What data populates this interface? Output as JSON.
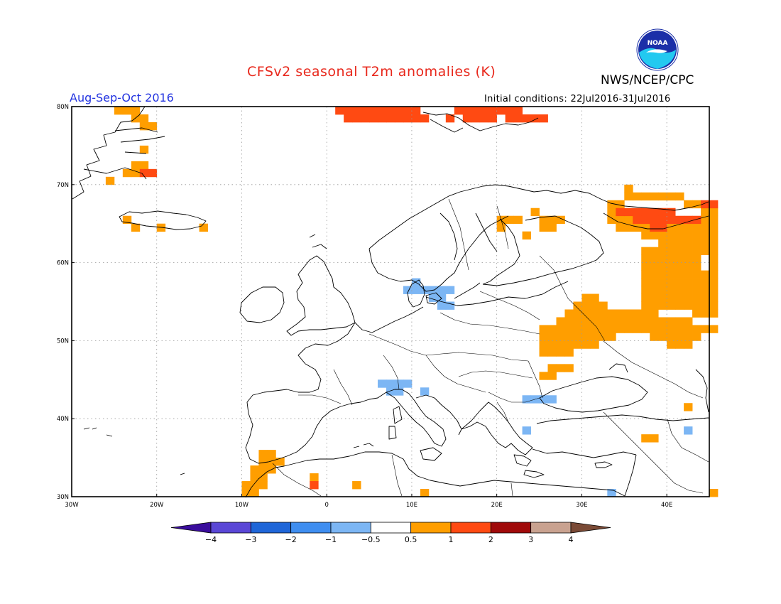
{
  "title": "CFSv2 seasonal T2m anomalies (K)",
  "agency": "NWS/NCEP/CPC",
  "logo_text": "NOAA",
  "season": "Aug-Sep-Oct 2016",
  "initial_conditions": "Initial conditions: 22Jul2016-31Jul2016",
  "colors": {
    "title": "#e8281c",
    "season": "#2233e0",
    "land_outline": "#000000",
    "frame": "#000000",
    "grid": "#999999"
  },
  "map": {
    "lon_range": [
      -30,
      45
    ],
    "lat_range": [
      30,
      80
    ],
    "lat_ticks": [
      "30N",
      "40N",
      "50N",
      "60N",
      "70N",
      "80N"
    ],
    "lon_ticks": [
      "30W",
      "20W",
      "10W",
      "0",
      "10E",
      "20E",
      "30E",
      "40E"
    ],
    "gridlines": "dotted"
  },
  "colorbar": {
    "ticks": [
      "-4",
      "-3",
      "-2",
      "-1",
      "-0.5",
      "0.5",
      "1",
      "2",
      "3",
      "4"
    ],
    "bins": [
      {
        "range": "<-4",
        "color": "#3a0d9c"
      },
      {
        "range": "-4 to -3",
        "color": "#5a47d6"
      },
      {
        "range": "-3 to -2",
        "color": "#1f66d8"
      },
      {
        "range": "-2 to -1",
        "color": "#3f8ef0"
      },
      {
        "range": "-1 to -0.5",
        "color": "#7cb6f4"
      },
      {
        "range": "-0.5 to 0.5",
        "color": "#ffffff"
      },
      {
        "range": "0.5 to 1",
        "color": "#ff9e00"
      },
      {
        "range": "1 to 2",
        "color": "#ff4a12"
      },
      {
        "range": "2 to 3",
        "color": "#a00a0a"
      },
      {
        "range": "3 to 4",
        "color": "#c9a290"
      },
      {
        "range": ">4",
        "color": "#7a4a36"
      }
    ]
  },
  "anomalies": {
    "cell_deg": 1,
    "orange": [
      [
        -25,
        79
      ],
      [
        -24,
        79
      ],
      [
        -23,
        79
      ],
      [
        -23,
        78
      ],
      [
        -22,
        78
      ],
      [
        -22,
        77
      ],
      [
        -21,
        77
      ],
      [
        -23,
        72
      ],
      [
        -22,
        72
      ],
      [
        -24,
        71
      ],
      [
        -23,
        71
      ],
      [
        -26,
        70
      ],
      [
        -22,
        74
      ],
      [
        -24,
        65
      ],
      [
        -23,
        64
      ],
      [
        -20,
        64
      ],
      [
        -15,
        64
      ],
      [
        35,
        69
      ],
      [
        35,
        68
      ],
      [
        36,
        68
      ],
      [
        37,
        68
      ],
      [
        38,
        68
      ],
      [
        39,
        68
      ],
      [
        40,
        68
      ],
      [
        41,
        68
      ],
      [
        33,
        67
      ],
      [
        34,
        67
      ],
      [
        42,
        67
      ],
      [
        43,
        67
      ],
      [
        33,
        66
      ],
      [
        34,
        66
      ],
      [
        44,
        66
      ],
      [
        45,
        66
      ],
      [
        33,
        65
      ],
      [
        34,
        65
      ],
      [
        35,
        65
      ],
      [
        44,
        65
      ],
      [
        45,
        65
      ],
      [
        34,
        64
      ],
      [
        35,
        64
      ],
      [
        36,
        64
      ],
      [
        37,
        64
      ],
      [
        38,
        64
      ],
      [
        39,
        64
      ],
      [
        40,
        64
      ],
      [
        41,
        64
      ],
      [
        42,
        64
      ],
      [
        43,
        64
      ],
      [
        44,
        64
      ],
      [
        45,
        64
      ],
      [
        37,
        63
      ],
      [
        38,
        63
      ],
      [
        39,
        63
      ],
      [
        40,
        63
      ],
      [
        41,
        63
      ],
      [
        42,
        63
      ],
      [
        43,
        63
      ],
      [
        44,
        63
      ],
      [
        45,
        63
      ],
      [
        39,
        62
      ],
      [
        40,
        62
      ],
      [
        41,
        62
      ],
      [
        42,
        62
      ],
      [
        43,
        62
      ],
      [
        44,
        62
      ],
      [
        45,
        62
      ],
      [
        37,
        61
      ],
      [
        38,
        61
      ],
      [
        39,
        61
      ],
      [
        40,
        61
      ],
      [
        41,
        61
      ],
      [
        42,
        61
      ],
      [
        43,
        61
      ],
      [
        44,
        61
      ],
      [
        45,
        61
      ],
      [
        37,
        60
      ],
      [
        38,
        60
      ],
      [
        39,
        60
      ],
      [
        40,
        60
      ],
      [
        41,
        60
      ],
      [
        42,
        60
      ],
      [
        43,
        60
      ],
      [
        45,
        60
      ],
      [
        37,
        59
      ],
      [
        38,
        59
      ],
      [
        39,
        59
      ],
      [
        40,
        59
      ],
      [
        41,
        59
      ],
      [
        42,
        59
      ],
      [
        43,
        59
      ],
      [
        45,
        59
      ],
      [
        37,
        58
      ],
      [
        38,
        58
      ],
      [
        39,
        58
      ],
      [
        40,
        58
      ],
      [
        41,
        58
      ],
      [
        42,
        58
      ],
      [
        43,
        58
      ],
      [
        44,
        58
      ],
      [
        45,
        58
      ],
      [
        37,
        57
      ],
      [
        38,
        57
      ],
      [
        39,
        57
      ],
      [
        40,
        57
      ],
      [
        41,
        57
      ],
      [
        42,
        57
      ],
      [
        43,
        57
      ],
      [
        44,
        57
      ],
      [
        45,
        57
      ],
      [
        37,
        56
      ],
      [
        38,
        56
      ],
      [
        39,
        56
      ],
      [
        40,
        56
      ],
      [
        41,
        56
      ],
      [
        42,
        56
      ],
      [
        43,
        56
      ],
      [
        44,
        56
      ],
      [
        45,
        56
      ],
      [
        30,
        55
      ],
      [
        31,
        55
      ],
      [
        37,
        55
      ],
      [
        38,
        55
      ],
      [
        39,
        55
      ],
      [
        40,
        55
      ],
      [
        41,
        55
      ],
      [
        42,
        55
      ],
      [
        43,
        55
      ],
      [
        44,
        55
      ],
      [
        45,
        55
      ],
      [
        29,
        54
      ],
      [
        30,
        54
      ],
      [
        31,
        54
      ],
      [
        32,
        54
      ],
      [
        37,
        54
      ],
      [
        38,
        54
      ],
      [
        39,
        54
      ],
      [
        40,
        54
      ],
      [
        41,
        54
      ],
      [
        42,
        54
      ],
      [
        43,
        54
      ],
      [
        44,
        54
      ],
      [
        45,
        54
      ],
      [
        28,
        53
      ],
      [
        29,
        53
      ],
      [
        30,
        53
      ],
      [
        31,
        53
      ],
      [
        32,
        53
      ],
      [
        33,
        53
      ],
      [
        34,
        53
      ],
      [
        35,
        53
      ],
      [
        36,
        53
      ],
      [
        37,
        53
      ],
      [
        38,
        53
      ],
      [
        43,
        53
      ],
      [
        44,
        53
      ],
      [
        45,
        53
      ],
      [
        27,
        52
      ],
      [
        28,
        52
      ],
      [
        29,
        52
      ],
      [
        30,
        52
      ],
      [
        31,
        52
      ],
      [
        32,
        52
      ],
      [
        33,
        52
      ],
      [
        34,
        52
      ],
      [
        35,
        52
      ],
      [
        36,
        52
      ],
      [
        37,
        52
      ],
      [
        38,
        52
      ],
      [
        39,
        52
      ],
      [
        40,
        52
      ],
      [
        41,
        52
      ],
      [
        42,
        52
      ],
      [
        25,
        51
      ],
      [
        26,
        51
      ],
      [
        27,
        51
      ],
      [
        28,
        51
      ],
      [
        29,
        51
      ],
      [
        30,
        51
      ],
      [
        31,
        51
      ],
      [
        32,
        51
      ],
      [
        33,
        51
      ],
      [
        34,
        51
      ],
      [
        35,
        51
      ],
      [
        36,
        51
      ],
      [
        37,
        51
      ],
      [
        38,
        51
      ],
      [
        39,
        51
      ],
      [
        40,
        51
      ],
      [
        41,
        51
      ],
      [
        42,
        51
      ],
      [
        43,
        51
      ],
      [
        44,
        51
      ],
      [
        45,
        51
      ],
      [
        25,
        50
      ],
      [
        26,
        50
      ],
      [
        27,
        50
      ],
      [
        28,
        50
      ],
      [
        29,
        50
      ],
      [
        30,
        50
      ],
      [
        31,
        50
      ],
      [
        32,
        50
      ],
      [
        33,
        50
      ],
      [
        38,
        50
      ],
      [
        39,
        50
      ],
      [
        40,
        50
      ],
      [
        41,
        50
      ],
      [
        42,
        50
      ],
      [
        43,
        50
      ],
      [
        25,
        49
      ],
      [
        26,
        49
      ],
      [
        27,
        49
      ],
      [
        28,
        49
      ],
      [
        29,
        49
      ],
      [
        30,
        49
      ],
      [
        31,
        49
      ],
      [
        40,
        49
      ],
      [
        41,
        49
      ],
      [
        42,
        49
      ],
      [
        25,
        48
      ],
      [
        26,
        48
      ],
      [
        27,
        48
      ],
      [
        28,
        48
      ],
      [
        26,
        46
      ],
      [
        27,
        46
      ],
      [
        28,
        46
      ],
      [
        25,
        45
      ],
      [
        26,
        45
      ],
      [
        37,
        37
      ],
      [
        38,
        37
      ],
      [
        42,
        41
      ],
      [
        20,
        65
      ],
      [
        21,
        65
      ],
      [
        22,
        65
      ],
      [
        24,
        66
      ],
      [
        25,
        65
      ],
      [
        26,
        65
      ],
      [
        27,
        65
      ],
      [
        25,
        64
      ],
      [
        26,
        64
      ],
      [
        23,
        63
      ],
      [
        20,
        64
      ],
      [
        -8,
        35
      ],
      [
        -7,
        35
      ],
      [
        -8,
        34
      ],
      [
        -7,
        34
      ],
      [
        -6,
        34
      ],
      [
        -9,
        33
      ],
      [
        -8,
        33
      ],
      [
        -7,
        33
      ],
      [
        -9,
        32
      ],
      [
        -8,
        32
      ],
      [
        -10,
        31
      ],
      [
        -9,
        31
      ],
      [
        -8,
        31
      ],
      [
        -10,
        30
      ],
      [
        -9,
        30
      ],
      [
        -2,
        32
      ],
      [
        3,
        31
      ],
      [
        11,
        30
      ],
      [
        45,
        30
      ]
    ],
    "red": [
      [
        1,
        79
      ],
      [
        2,
        79
      ],
      [
        3,
        79
      ],
      [
        4,
        79
      ],
      [
        5,
        79
      ],
      [
        6,
        79
      ],
      [
        7,
        79
      ],
      [
        8,
        79
      ],
      [
        9,
        79
      ],
      [
        10,
        79
      ],
      [
        15,
        79
      ],
      [
        16,
        79
      ],
      [
        17,
        79
      ],
      [
        18,
        79
      ],
      [
        19,
        79
      ],
      [
        20,
        79
      ],
      [
        21,
        79
      ],
      [
        22,
        79
      ],
      [
        2,
        78
      ],
      [
        3,
        78
      ],
      [
        4,
        78
      ],
      [
        5,
        78
      ],
      [
        6,
        78
      ],
      [
        7,
        78
      ],
      [
        8,
        78
      ],
      [
        9,
        78
      ],
      [
        10,
        78
      ],
      [
        11,
        78
      ],
      [
        14,
        78
      ],
      [
        16,
        78
      ],
      [
        17,
        78
      ],
      [
        18,
        78
      ],
      [
        19,
        78
      ],
      [
        21,
        78
      ],
      [
        22,
        78
      ],
      [
        23,
        78
      ],
      [
        24,
        78
      ],
      [
        25,
        78
      ],
      [
        -22,
        71
      ],
      [
        -21,
        71
      ],
      [
        34,
        66
      ],
      [
        35,
        66
      ],
      [
        36,
        66
      ],
      [
        37,
        66
      ],
      [
        38,
        66
      ],
      [
        39,
        66
      ],
      [
        40,
        66
      ],
      [
        44,
        67
      ],
      [
        45,
        67
      ],
      [
        36,
        65
      ],
      [
        37,
        65
      ],
      [
        38,
        65
      ],
      [
        39,
        65
      ],
      [
        40,
        65
      ],
      [
        41,
        65
      ],
      [
        42,
        65
      ],
      [
        43,
        65
      ],
      [
        38,
        64
      ],
      [
        39,
        64
      ],
      [
        -2,
        31
      ]
    ],
    "light_blue": [
      [
        10,
        57
      ],
      [
        11,
        56
      ],
      [
        9,
        56
      ],
      [
        10,
        56
      ],
      [
        12,
        56
      ],
      [
        13,
        56
      ],
      [
        14,
        56
      ],
      [
        12,
        55
      ],
      [
        13,
        55
      ],
      [
        13,
        54
      ],
      [
        14,
        54
      ],
      [
        6,
        44
      ],
      [
        7,
        44
      ],
      [
        8,
        44
      ],
      [
        9,
        44
      ],
      [
        7,
        43
      ],
      [
        8,
        43
      ],
      [
        11,
        43
      ],
      [
        23,
        42
      ],
      [
        24,
        42
      ],
      [
        25,
        42
      ],
      [
        26,
        42
      ],
      [
        23,
        38
      ],
      [
        42,
        38
      ],
      [
        33,
        30
      ]
    ]
  }
}
